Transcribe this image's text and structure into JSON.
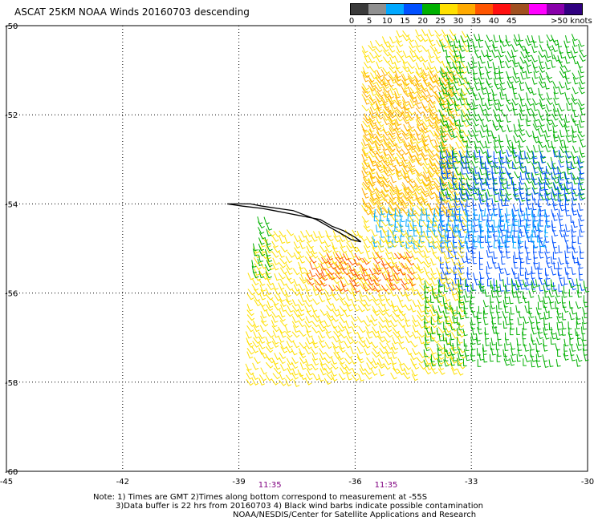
{
  "title": "ASCAT 25KM NOAA Winds 20160703 descending",
  "legend": {
    "unit_label": ">50 knots",
    "ticks": [
      "0",
      "5",
      "10",
      "15",
      "20",
      "25",
      "30",
      "35",
      "40",
      "45"
    ],
    "colors": [
      "#3a3a3a",
      "#909090",
      "#00a8ff",
      "#0050ff",
      "#00b000",
      "#ffe000",
      "#ffaa00",
      "#ff5500",
      "#ff1010",
      "#a05020",
      "#ff00ff",
      "#8800aa",
      "#300080"
    ]
  },
  "footer": {
    "line1": "Note: 1) Times are GMT 2)Times along bottom correspond to measurement at -55S",
    "line2": "3)Data buffer is 22 hrs from 20160703 4) Black wind barbs indicate possible contamination",
    "line3": "NOAA/NESDIS/Center for Satellite Applications and Research"
  },
  "chart_data": {
    "type": "scatter",
    "title": "ASCAT 25KM NOAA Winds 20160703 descending",
    "x_ticks": [
      "-45",
      "-42",
      "-39",
      "-36",
      "-33",
      "-30"
    ],
    "y_ticks": [
      "-50",
      "-52",
      "-54",
      "-56",
      "-58",
      "-60"
    ],
    "xlim": [
      -45,
      -30
    ],
    "ylim": [
      -60,
      -50
    ],
    "grid": true,
    "time_labels": [
      {
        "lon": -38.2,
        "text": "11:35"
      },
      {
        "lon": -35.2,
        "text": "11:35"
      }
    ],
    "coastline": [
      [
        -39.3,
        -54.0
      ],
      [
        -38.7,
        -54.0
      ],
      [
        -38.4,
        -54.05
      ],
      [
        -38.0,
        -54.1
      ],
      [
        -37.6,
        -54.15
      ],
      [
        -37.3,
        -54.25
      ],
      [
        -37.0,
        -54.35
      ],
      [
        -36.7,
        -54.5
      ],
      [
        -36.4,
        -54.65
      ],
      [
        -36.1,
        -54.8
      ],
      [
        -35.85,
        -54.85
      ],
      [
        -36.0,
        -54.75
      ],
      [
        -36.3,
        -54.6
      ],
      [
        -36.6,
        -54.5
      ],
      [
        -36.9,
        -54.35
      ],
      [
        -37.2,
        -54.3
      ],
      [
        -37.5,
        -54.25
      ],
      [
        -37.8,
        -54.2
      ],
      [
        -38.1,
        -54.15
      ],
      [
        -38.4,
        -54.1
      ],
      [
        -38.9,
        -54.05
      ],
      [
        -39.3,
        -54.0
      ]
    ],
    "wind_regions": [
      {
        "name": "north-yellow",
        "speed_knots": 22,
        "color": "#ffe000",
        "lon": [
          -35.8,
          -33.2
        ],
        "lat": [
          -54.6,
          -50.1
        ],
        "dir_deg": 300
      },
      {
        "name": "north-orange",
        "speed_knots": 27,
        "color": "#ffaa00",
        "lon": [
          -35.8,
          -33.5
        ],
        "lat": [
          -54.2,
          -51.0
        ],
        "dir_deg": 300
      },
      {
        "name": "northeast-green",
        "speed_knots": 17,
        "color": "#00b000",
        "lon": [
          -33.8,
          -30.1
        ],
        "lat": [
          -53.8,
          -50.2
        ],
        "dir_deg": 290
      },
      {
        "name": "east-blue",
        "speed_knots": 13,
        "color": "#0050ff",
        "lon": [
          -33.8,
          -30.1
        ],
        "lat": [
          -55.8,
          -52.8
        ],
        "dir_deg": 280
      },
      {
        "name": "east-cyan",
        "speed_knots": 9,
        "color": "#00a8ff",
        "lon": [
          -35.5,
          -31.0
        ],
        "lat": [
          -54.9,
          -54.1
        ],
        "dir_deg": 270
      },
      {
        "name": "south-yellow",
        "speed_knots": 22,
        "color": "#ffe000",
        "lon": [
          -38.8,
          -33.3
        ],
        "lat": [
          -58.0,
          -54.6
        ],
        "dir_deg": 300
      },
      {
        "name": "south-orange",
        "speed_knots": 28,
        "color": "#ff5500",
        "lon": [
          -37.2,
          -34.6
        ],
        "lat": [
          -55.9,
          -55.1
        ],
        "dir_deg": 300
      },
      {
        "name": "southeast-green",
        "speed_knots": 17,
        "color": "#00b000",
        "lon": [
          -34.2,
          -30.1
        ],
        "lat": [
          -57.6,
          -55.7
        ],
        "dir_deg": 280
      },
      {
        "name": "west-green",
        "speed_knots": 17,
        "color": "#00b000",
        "lon": [
          -39.0,
          -38.3
        ],
        "lat": [
          -55.5,
          -54.3
        ],
        "dir_deg": 290
      }
    ]
  }
}
